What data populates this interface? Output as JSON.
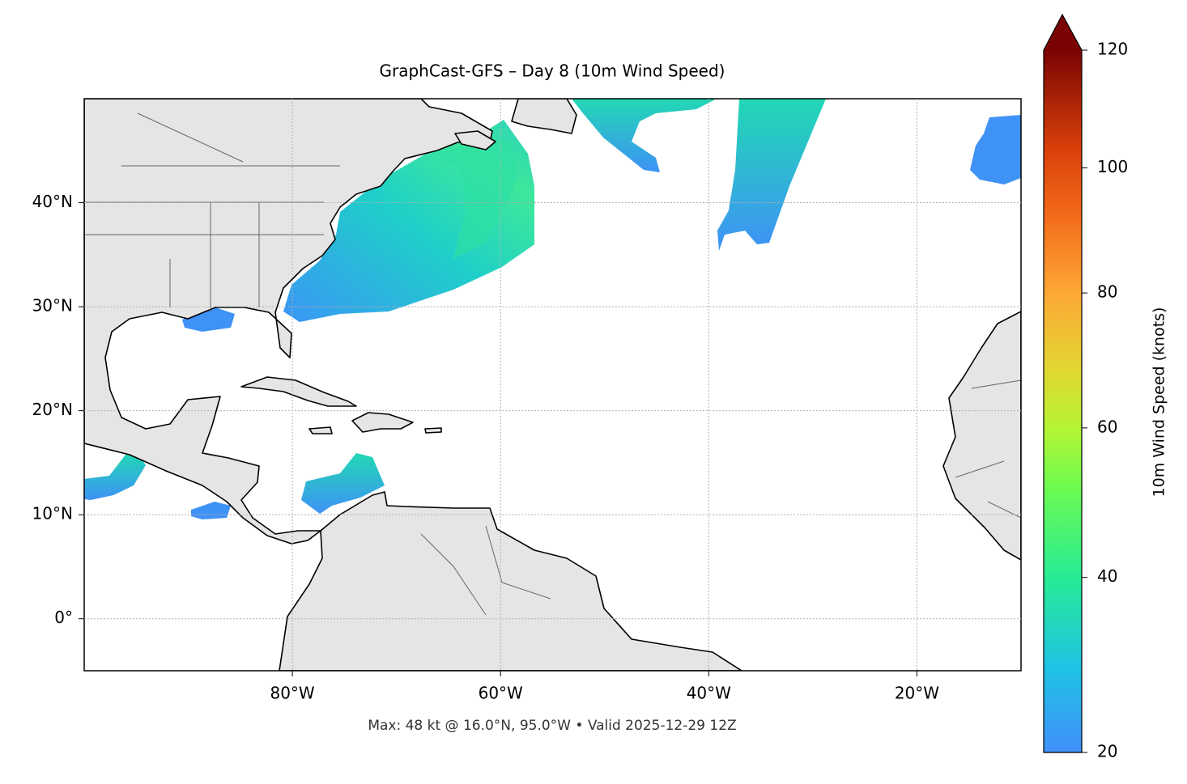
{
  "title": "GraphCast-GFS – Day 8 (10m Wind Speed)",
  "map": {
    "xlim": [
      -100,
      -10
    ],
    "ylim": [
      -5,
      50
    ],
    "xticks": [
      {
        "value": -80,
        "label": "80°W"
      },
      {
        "value": -60,
        "label": "60°W"
      },
      {
        "value": -40,
        "label": "40°W"
      },
      {
        "value": -20,
        "label": "20°W"
      }
    ],
    "yticks": [
      {
        "value": 0,
        "label": "0°"
      },
      {
        "value": 10,
        "label": "10°N"
      },
      {
        "value": 20,
        "label": "20°N"
      },
      {
        "value": 30,
        "label": "30°N"
      },
      {
        "value": 40,
        "label": "40°N"
      }
    ],
    "grid": true
  },
  "colorbar": {
    "label": "10m Wind Speed (knots)",
    "lim": [
      20,
      120
    ],
    "ticks": [
      20,
      40,
      60,
      80,
      100,
      120
    ]
  },
  "footer": "Max: 48 kt @ 16.0°N, 95.0°W • Valid 2025-12-29 12Z"
}
